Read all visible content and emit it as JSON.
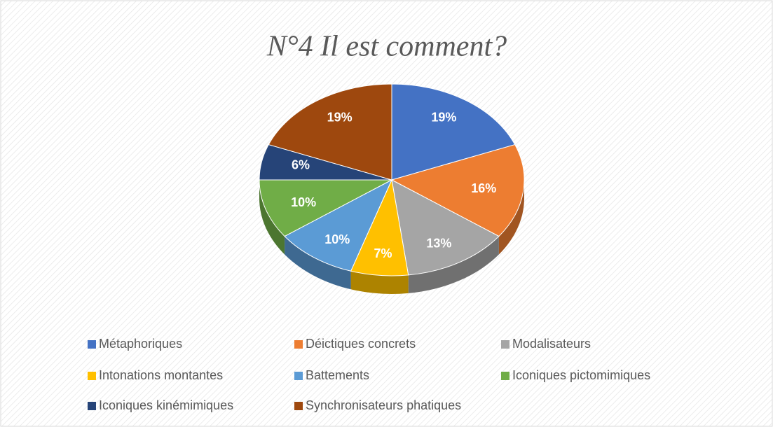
{
  "chart_data": {
    "type": "pie",
    "title": "N°4 Il est comment?",
    "categories": [
      "Métaphoriques",
      "Déictiques concrets",
      "Modalisateurs",
      "Intonations montantes",
      "Battements",
      "Iconiques pictomimiques",
      "Iconiques kinémimiques",
      "Synchronisateurs phatiques"
    ],
    "values": [
      19,
      16,
      13,
      7,
      10,
      10,
      6,
      19
    ],
    "value_labels": [
      "19%",
      "16%",
      "13%",
      "7%",
      "10%",
      "10%",
      "6%",
      "19%"
    ],
    "colors": [
      "#4472c4",
      "#ed7d31",
      "#a5a5a5",
      "#ffc000",
      "#5b9bd5",
      "#70ad47",
      "#264478",
      "#9e480e"
    ],
    "legend": "bottom"
  }
}
